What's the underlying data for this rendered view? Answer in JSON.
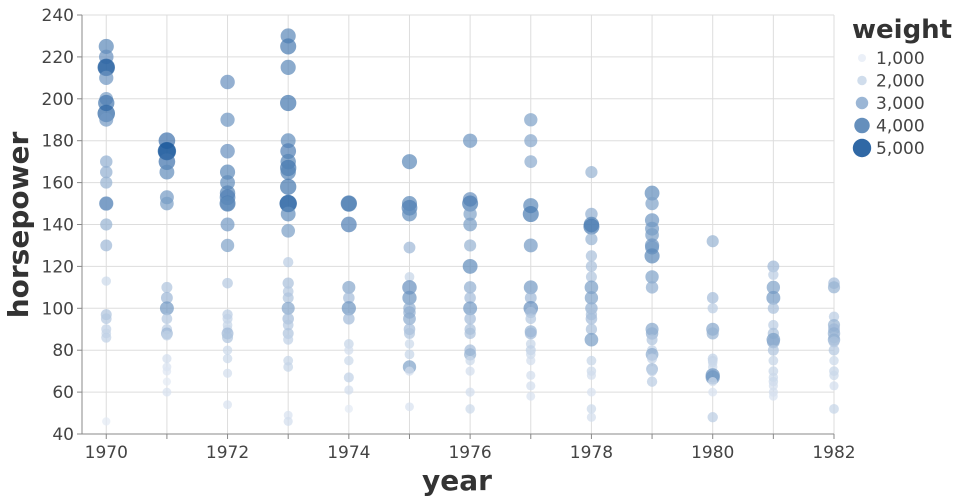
{
  "chart_data": {
    "type": "scatter",
    "title": "",
    "xlabel": "year",
    "ylabel": "horsepower",
    "xlim": [
      1969.6,
      1982.0
    ],
    "ylim": [
      40,
      240
    ],
    "x_ticks": [
      1970,
      1972,
      1974,
      1976,
      1978,
      1980,
      1982
    ],
    "x_tick_labels": [
      "1970",
      "1972",
      "1974",
      "1976",
      "1978",
      "1980",
      "1982"
    ],
    "y_ticks": [
      40,
      60,
      80,
      100,
      120,
      140,
      160,
      180,
      200,
      220,
      240
    ],
    "y_tick_labels": [
      "40",
      "60",
      "80",
      "100",
      "120",
      "140",
      "160",
      "180",
      "200",
      "220",
      "240"
    ],
    "grid": true,
    "size_color_encoding": "weight",
    "legend": {
      "title": "weight",
      "placement": "right",
      "items": [
        {
          "label": "1,000",
          "value": 1000
        },
        {
          "label": "2,000",
          "value": 2000
        },
        {
          "label": "3,000",
          "value": 3000
        },
        {
          "label": "4,000",
          "value": 4000
        },
        {
          "label": "5,000",
          "value": 5000
        }
      ]
    },
    "colors": {
      "light": "#e9eef7",
      "dark": "#0d4f96"
    },
    "points": [
      {
        "x": 1970,
        "y": 225,
        "w": 3900
      },
      {
        "x": 1970,
        "y": 220,
        "w": 3700
      },
      {
        "x": 1970,
        "y": 215,
        "w": 4400
      },
      {
        "x": 1970,
        "y": 215,
        "w": 4700
      },
      {
        "x": 1970,
        "y": 210,
        "w": 3600
      },
      {
        "x": 1970,
        "y": 200,
        "w": 3400
      },
      {
        "x": 1970,
        "y": 198,
        "w": 4300
      },
      {
        "x": 1970,
        "y": 193,
        "w": 4700
      },
      {
        "x": 1970,
        "y": 190,
        "w": 3500
      },
      {
        "x": 1970,
        "y": 170,
        "w": 3000
      },
      {
        "x": 1970,
        "y": 165,
        "w": 3000
      },
      {
        "x": 1970,
        "y": 160,
        "w": 2900
      },
      {
        "x": 1970,
        "y": 150,
        "w": 3400
      },
      {
        "x": 1970,
        "y": 150,
        "w": 3600
      },
      {
        "x": 1970,
        "y": 140,
        "w": 2900
      },
      {
        "x": 1970,
        "y": 130,
        "w": 2800
      },
      {
        "x": 1970,
        "y": 113,
        "w": 2000
      },
      {
        "x": 1970,
        "y": 97,
        "w": 2500
      },
      {
        "x": 1970,
        "y": 95,
        "w": 2400
      },
      {
        "x": 1970,
        "y": 90,
        "w": 2200
      },
      {
        "x": 1970,
        "y": 88,
        "w": 2100
      },
      {
        "x": 1970,
        "y": 86,
        "w": 2200
      },
      {
        "x": 1970,
        "y": 46,
        "w": 1600
      },
      {
        "x": 1971,
        "y": 180,
        "w": 4400
      },
      {
        "x": 1971,
        "y": 175,
        "w": 4700
      },
      {
        "x": 1971,
        "y": 175,
        "w": 5000
      },
      {
        "x": 1971,
        "y": 170,
        "w": 4400
      },
      {
        "x": 1971,
        "y": 165,
        "w": 3800
      },
      {
        "x": 1971,
        "y": 153,
        "w": 3500
      },
      {
        "x": 1971,
        "y": 150,
        "w": 3400
      },
      {
        "x": 1971,
        "y": 110,
        "w": 2500
      },
      {
        "x": 1971,
        "y": 105,
        "w": 2800
      },
      {
        "x": 1971,
        "y": 100,
        "w": 3500
      },
      {
        "x": 1971,
        "y": 95,
        "w": 2400
      },
      {
        "x": 1971,
        "y": 90,
        "w": 2300
      },
      {
        "x": 1971,
        "y": 88,
        "w": 2800
      },
      {
        "x": 1971,
        "y": 87,
        "w": 2200
      },
      {
        "x": 1971,
        "y": 76,
        "w": 1900
      },
      {
        "x": 1971,
        "y": 72,
        "w": 1800
      },
      {
        "x": 1971,
        "y": 70,
        "w": 1700
      },
      {
        "x": 1971,
        "y": 65,
        "w": 1600
      },
      {
        "x": 1971,
        "y": 60,
        "w": 1800
      },
      {
        "x": 1972,
        "y": 208,
        "w": 3700
      },
      {
        "x": 1972,
        "y": 190,
        "w": 3600
      },
      {
        "x": 1972,
        "y": 175,
        "w": 3700
      },
      {
        "x": 1972,
        "y": 165,
        "w": 3900
      },
      {
        "x": 1972,
        "y": 160,
        "w": 3800
      },
      {
        "x": 1972,
        "y": 155,
        "w": 4000
      },
      {
        "x": 1972,
        "y": 153,
        "w": 4100
      },
      {
        "x": 1972,
        "y": 150,
        "w": 4200
      },
      {
        "x": 1972,
        "y": 150,
        "w": 3800
      },
      {
        "x": 1972,
        "y": 140,
        "w": 3500
      },
      {
        "x": 1972,
        "y": 130,
        "w": 3300
      },
      {
        "x": 1972,
        "y": 112,
        "w": 2400
      },
      {
        "x": 1972,
        "y": 97,
        "w": 2300
      },
      {
        "x": 1972,
        "y": 95,
        "w": 2200
      },
      {
        "x": 1972,
        "y": 92,
        "w": 2100
      },
      {
        "x": 1972,
        "y": 90,
        "w": 2000
      },
      {
        "x": 1972,
        "y": 88,
        "w": 2800
      },
      {
        "x": 1972,
        "y": 86,
        "w": 2500
      },
      {
        "x": 1972,
        "y": 80,
        "w": 2000
      },
      {
        "x": 1972,
        "y": 76,
        "w": 2000
      },
      {
        "x": 1972,
        "y": 69,
        "w": 1900
      },
      {
        "x": 1972,
        "y": 54,
        "w": 1800
      },
      {
        "x": 1973,
        "y": 230,
        "w": 3900
      },
      {
        "x": 1973,
        "y": 225,
        "w": 4200
      },
      {
        "x": 1973,
        "y": 215,
        "w": 3900
      },
      {
        "x": 1973,
        "y": 198,
        "w": 4300
      },
      {
        "x": 1973,
        "y": 180,
        "w": 3800
      },
      {
        "x": 1973,
        "y": 175,
        "w": 4100
      },
      {
        "x": 1973,
        "y": 170,
        "w": 4000
      },
      {
        "x": 1973,
        "y": 167,
        "w": 4300
      },
      {
        "x": 1973,
        "y": 165,
        "w": 4000
      },
      {
        "x": 1973,
        "y": 158,
        "w": 4300
      },
      {
        "x": 1973,
        "y": 150,
        "w": 4700
      },
      {
        "x": 1973,
        "y": 150,
        "w": 4500
      },
      {
        "x": 1973,
        "y": 145,
        "w": 3800
      },
      {
        "x": 1973,
        "y": 137,
        "w": 3400
      },
      {
        "x": 1973,
        "y": 122,
        "w": 2300
      },
      {
        "x": 1973,
        "y": 112,
        "w": 2600
      },
      {
        "x": 1973,
        "y": 108,
        "w": 2400
      },
      {
        "x": 1973,
        "y": 105,
        "w": 2500
      },
      {
        "x": 1973,
        "y": 100,
        "w": 3200
      },
      {
        "x": 1973,
        "y": 95,
        "w": 2700
      },
      {
        "x": 1973,
        "y": 92,
        "w": 2400
      },
      {
        "x": 1973,
        "y": 88,
        "w": 2500
      },
      {
        "x": 1973,
        "y": 85,
        "w": 2200
      },
      {
        "x": 1973,
        "y": 75,
        "w": 2100
      },
      {
        "x": 1973,
        "y": 72,
        "w": 2100
      },
      {
        "x": 1973,
        "y": 49,
        "w": 1800
      },
      {
        "x": 1973,
        "y": 46,
        "w": 1900
      },
      {
        "x": 1974,
        "y": 150,
        "w": 4300
      },
      {
        "x": 1974,
        "y": 150,
        "w": 4000
      },
      {
        "x": 1974,
        "y": 140,
        "w": 4100
      },
      {
        "x": 1974,
        "y": 110,
        "w": 3200
      },
      {
        "x": 1974,
        "y": 105,
        "w": 2700
      },
      {
        "x": 1974,
        "y": 100,
        "w": 3600
      },
      {
        "x": 1974,
        "y": 95,
        "w": 2700
      },
      {
        "x": 1974,
        "y": 83,
        "w": 2100
      },
      {
        "x": 1974,
        "y": 80,
        "w": 1900
      },
      {
        "x": 1974,
        "y": 75,
        "w": 2000
      },
      {
        "x": 1974,
        "y": 67,
        "w": 2200
      },
      {
        "x": 1974,
        "y": 61,
        "w": 1900
      },
      {
        "x": 1974,
        "y": 52,
        "w": 1600
      },
      {
        "x": 1975,
        "y": 170,
        "w": 3900
      },
      {
        "x": 1975,
        "y": 150,
        "w": 3900
      },
      {
        "x": 1975,
        "y": 148,
        "w": 4100
      },
      {
        "x": 1975,
        "y": 145,
        "w": 3800
      },
      {
        "x": 1975,
        "y": 129,
        "w": 2800
      },
      {
        "x": 1975,
        "y": 115,
        "w": 2100
      },
      {
        "x": 1975,
        "y": 110,
        "w": 3700
      },
      {
        "x": 1975,
        "y": 105,
        "w": 3600
      },
      {
        "x": 1975,
        "y": 100,
        "w": 3000
      },
      {
        "x": 1975,
        "y": 98,
        "w": 3000
      },
      {
        "x": 1975,
        "y": 95,
        "w": 3100
      },
      {
        "x": 1975,
        "y": 90,
        "w": 2700
      },
      {
        "x": 1975,
        "y": 88,
        "w": 2500
      },
      {
        "x": 1975,
        "y": 83,
        "w": 2000
      },
      {
        "x": 1975,
        "y": 78,
        "w": 2100
      },
      {
        "x": 1975,
        "y": 72,
        "w": 3300
      },
      {
        "x": 1975,
        "y": 70,
        "w": 1900
      },
      {
        "x": 1975,
        "y": 53,
        "w": 1800
      },
      {
        "x": 1976,
        "y": 180,
        "w": 3600
      },
      {
        "x": 1976,
        "y": 152,
        "w": 3700
      },
      {
        "x": 1976,
        "y": 150,
        "w": 4200
      },
      {
        "x": 1976,
        "y": 145,
        "w": 3300
      },
      {
        "x": 1976,
        "y": 140,
        "w": 3400
      },
      {
        "x": 1976,
        "y": 130,
        "w": 2900
      },
      {
        "x": 1976,
        "y": 120,
        "w": 3800
      },
      {
        "x": 1976,
        "y": 110,
        "w": 3000
      },
      {
        "x": 1976,
        "y": 105,
        "w": 2700
      },
      {
        "x": 1976,
        "y": 100,
        "w": 3500
      },
      {
        "x": 1976,
        "y": 95,
        "w": 2700
      },
      {
        "x": 1976,
        "y": 90,
        "w": 2600
      },
      {
        "x": 1976,
        "y": 88,
        "w": 2600
      },
      {
        "x": 1976,
        "y": 80,
        "w": 2700
      },
      {
        "x": 1976,
        "y": 78,
        "w": 2900
      },
      {
        "x": 1976,
        "y": 75,
        "w": 2000
      },
      {
        "x": 1976,
        "y": 70,
        "w": 1900
      },
      {
        "x": 1976,
        "y": 60,
        "w": 1900
      },
      {
        "x": 1976,
        "y": 52,
        "w": 2000
      },
      {
        "x": 1977,
        "y": 190,
        "w": 3300
      },
      {
        "x": 1977,
        "y": 180,
        "w": 3200
      },
      {
        "x": 1977,
        "y": 170,
        "w": 3100
      },
      {
        "x": 1977,
        "y": 149,
        "w": 3900
      },
      {
        "x": 1977,
        "y": 145,
        "w": 4200
      },
      {
        "x": 1977,
        "y": 130,
        "w": 3500
      },
      {
        "x": 1977,
        "y": 110,
        "w": 3500
      },
      {
        "x": 1977,
        "y": 105,
        "w": 2800
      },
      {
        "x": 1977,
        "y": 100,
        "w": 3700
      },
      {
        "x": 1977,
        "y": 98,
        "w": 2600
      },
      {
        "x": 1977,
        "y": 95,
        "w": 2400
      },
      {
        "x": 1977,
        "y": 89,
        "w": 2900
      },
      {
        "x": 1977,
        "y": 88,
        "w": 2800
      },
      {
        "x": 1977,
        "y": 83,
        "w": 2100
      },
      {
        "x": 1977,
        "y": 80,
        "w": 2200
      },
      {
        "x": 1977,
        "y": 78,
        "w": 2000
      },
      {
        "x": 1977,
        "y": 75,
        "w": 1900
      },
      {
        "x": 1977,
        "y": 68,
        "w": 1900
      },
      {
        "x": 1977,
        "y": 63,
        "w": 1900
      },
      {
        "x": 1977,
        "y": 58,
        "w": 1800
      },
      {
        "x": 1978,
        "y": 165,
        "w": 2900
      },
      {
        "x": 1978,
        "y": 145,
        "w": 3000
      },
      {
        "x": 1978,
        "y": 140,
        "w": 4000
      },
      {
        "x": 1978,
        "y": 139,
        "w": 4200
      },
      {
        "x": 1978,
        "y": 133,
        "w": 2900
      },
      {
        "x": 1978,
        "y": 125,
        "w": 2600
      },
      {
        "x": 1978,
        "y": 120,
        "w": 2600
      },
      {
        "x": 1978,
        "y": 115,
        "w": 2500
      },
      {
        "x": 1978,
        "y": 110,
        "w": 3400
      },
      {
        "x": 1978,
        "y": 105,
        "w": 3300
      },
      {
        "x": 1978,
        "y": 100,
        "w": 3000
      },
      {
        "x": 1978,
        "y": 97,
        "w": 2600
      },
      {
        "x": 1978,
        "y": 95,
        "w": 2700
      },
      {
        "x": 1978,
        "y": 90,
        "w": 2600
      },
      {
        "x": 1978,
        "y": 85,
        "w": 3400
      },
      {
        "x": 1978,
        "y": 75,
        "w": 2100
      },
      {
        "x": 1978,
        "y": 70,
        "w": 2000
      },
      {
        "x": 1978,
        "y": 68,
        "w": 1900
      },
      {
        "x": 1978,
        "y": 60,
        "w": 1800
      },
      {
        "x": 1978,
        "y": 52,
        "w": 2000
      },
      {
        "x": 1978,
        "y": 48,
        "w": 1900
      },
      {
        "x": 1979,
        "y": 155,
        "w": 3800
      },
      {
        "x": 1979,
        "y": 150,
        "w": 3300
      },
      {
        "x": 1979,
        "y": 142,
        "w": 3600
      },
      {
        "x": 1979,
        "y": 138,
        "w": 3500
      },
      {
        "x": 1979,
        "y": 135,
        "w": 3400
      },
      {
        "x": 1979,
        "y": 130,
        "w": 3600
      },
      {
        "x": 1979,
        "y": 129,
        "w": 3500
      },
      {
        "x": 1979,
        "y": 125,
        "w": 3900
      },
      {
        "x": 1979,
        "y": 115,
        "w": 3300
      },
      {
        "x": 1979,
        "y": 110,
        "w": 3000
      },
      {
        "x": 1979,
        "y": 90,
        "w": 3200
      },
      {
        "x": 1979,
        "y": 88,
        "w": 3000
      },
      {
        "x": 1979,
        "y": 85,
        "w": 2500
      },
      {
        "x": 1979,
        "y": 80,
        "w": 2200
      },
      {
        "x": 1979,
        "y": 78,
        "w": 3100
      },
      {
        "x": 1979,
        "y": 76,
        "w": 2200
      },
      {
        "x": 1979,
        "y": 71,
        "w": 2800
      },
      {
        "x": 1979,
        "y": 70,
        "w": 2200
      },
      {
        "x": 1979,
        "y": 65,
        "w": 2300
      },
      {
        "x": 1980,
        "y": 132,
        "w": 2900
      },
      {
        "x": 1980,
        "y": 105,
        "w": 2700
      },
      {
        "x": 1980,
        "y": 100,
        "w": 2300
      },
      {
        "x": 1980,
        "y": 90,
        "w": 3200
      },
      {
        "x": 1980,
        "y": 88,
        "w": 2900
      },
      {
        "x": 1980,
        "y": 76,
        "w": 2200
      },
      {
        "x": 1980,
        "y": 75,
        "w": 2100
      },
      {
        "x": 1980,
        "y": 74,
        "w": 2000
      },
      {
        "x": 1980,
        "y": 72,
        "w": 2000
      },
      {
        "x": 1980,
        "y": 68,
        "w": 3600
      },
      {
        "x": 1980,
        "y": 67,
        "w": 3600
      },
      {
        "x": 1980,
        "y": 65,
        "w": 1900
      },
      {
        "x": 1980,
        "y": 60,
        "w": 1800
      },
      {
        "x": 1980,
        "y": 48,
        "w": 2300
      },
      {
        "x": 1981,
        "y": 120,
        "w": 2800
      },
      {
        "x": 1981,
        "y": 116,
        "w": 2300
      },
      {
        "x": 1981,
        "y": 110,
        "w": 3300
      },
      {
        "x": 1981,
        "y": 105,
        "w": 3500
      },
      {
        "x": 1981,
        "y": 100,
        "w": 2600
      },
      {
        "x": 1981,
        "y": 92,
        "w": 2300
      },
      {
        "x": 1981,
        "y": 88,
        "w": 2600
      },
      {
        "x": 1981,
        "y": 85,
        "w": 3400
      },
      {
        "x": 1981,
        "y": 84,
        "w": 3100
      },
      {
        "x": 1981,
        "y": 80,
        "w": 2500
      },
      {
        "x": 1981,
        "y": 75,
        "w": 2100
      },
      {
        "x": 1981,
        "y": 70,
        "w": 2100
      },
      {
        "x": 1981,
        "y": 67,
        "w": 2000
      },
      {
        "x": 1981,
        "y": 65,
        "w": 2000
      },
      {
        "x": 1981,
        "y": 63,
        "w": 1900
      },
      {
        "x": 1981,
        "y": 60,
        "w": 1900
      },
      {
        "x": 1981,
        "y": 58,
        "w": 1800
      },
      {
        "x": 1982,
        "y": 112,
        "w": 2700
      },
      {
        "x": 1982,
        "y": 110,
        "w": 2900
      },
      {
        "x": 1982,
        "y": 96,
        "w": 2300
      },
      {
        "x": 1982,
        "y": 92,
        "w": 2900
      },
      {
        "x": 1982,
        "y": 90,
        "w": 2800
      },
      {
        "x": 1982,
        "y": 88,
        "w": 3000
      },
      {
        "x": 1982,
        "y": 86,
        "w": 2600
      },
      {
        "x": 1982,
        "y": 85,
        "w": 3000
      },
      {
        "x": 1982,
        "y": 84,
        "w": 2500
      },
      {
        "x": 1982,
        "y": 80,
        "w": 2400
      },
      {
        "x": 1982,
        "y": 75,
        "w": 2000
      },
      {
        "x": 1982,
        "y": 70,
        "w": 2100
      },
      {
        "x": 1982,
        "y": 68,
        "w": 2000
      },
      {
        "x": 1982,
        "y": 63,
        "w": 1900
      },
      {
        "x": 1982,
        "y": 52,
        "w": 2100
      }
    ]
  }
}
